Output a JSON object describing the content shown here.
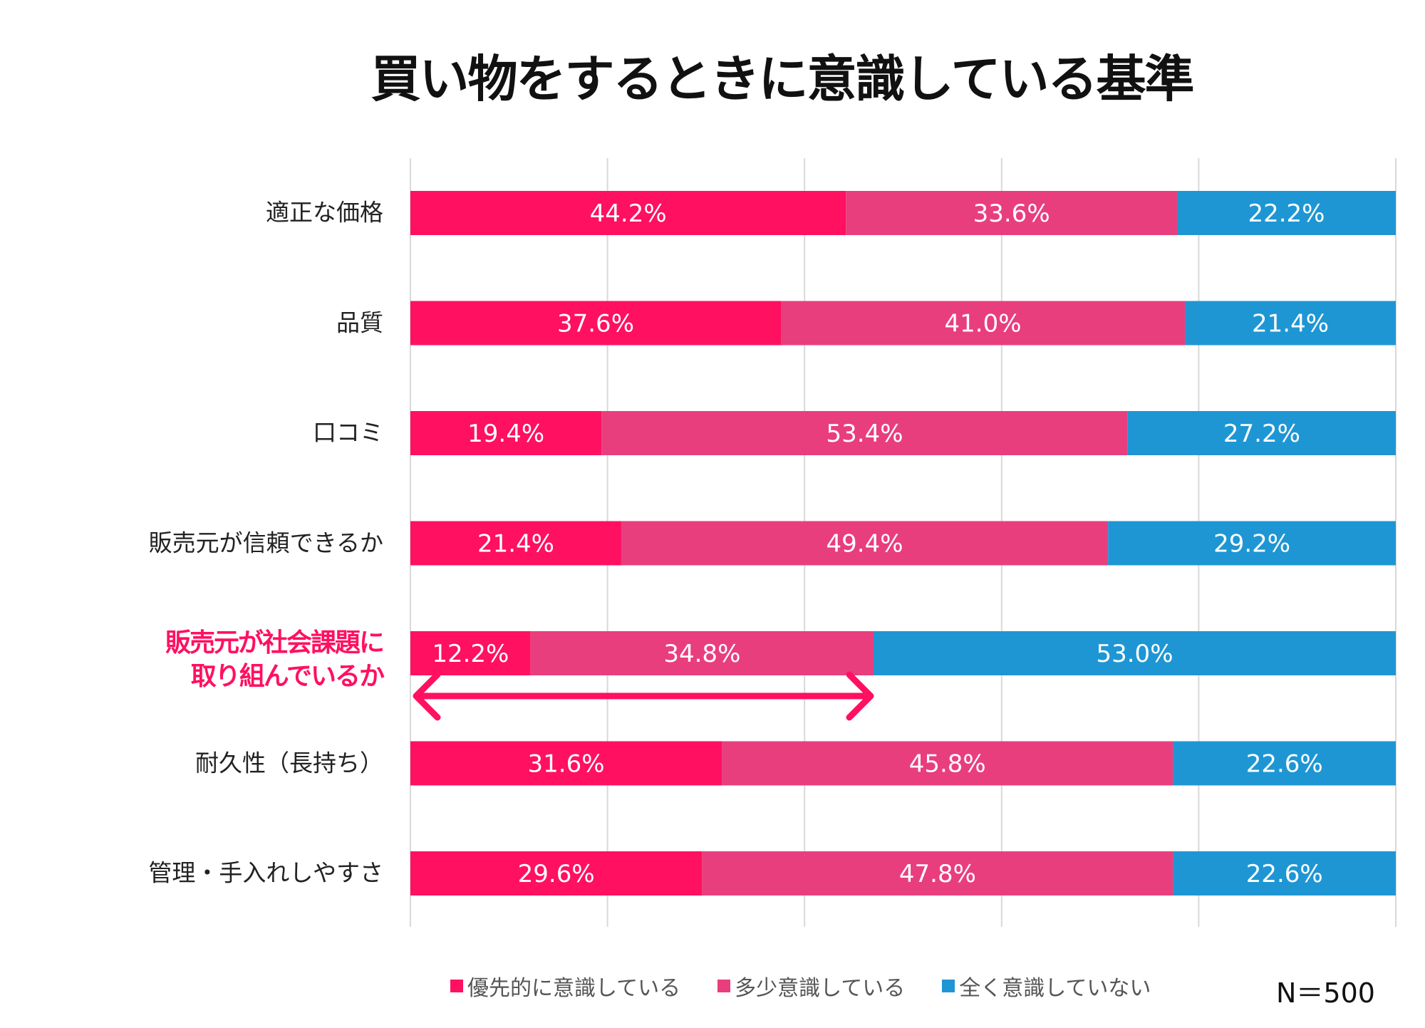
{
  "chart_data": {
    "type": "bar",
    "orientation": "horizontal",
    "stacked": "100%",
    "title": "買い物をするときに意識している基準",
    "categories": [
      "適正な価格",
      "品質",
      "口コミ",
      "販売元が信頼できるか",
      "販売元が社会課題に取り組んでいるか",
      "耐久性（長持ち）",
      "管理・手入れしやすさ"
    ],
    "category_lines": [
      [
        "適正な価格"
      ],
      [
        "品質"
      ],
      [
        "口コミ"
      ],
      [
        "販売元が信頼できるか"
      ],
      [
        "販売元が社会課題に",
        "取り組んでいるか"
      ],
      [
        "耐久性（長持ち）"
      ],
      [
        "管理・手入れしやすさ"
      ]
    ],
    "highlight_category": 4,
    "series": [
      {
        "name": "優先的に意識している",
        "color": "#FF1060",
        "values": [
          44.2,
          37.6,
          19.4,
          21.4,
          12.2,
          31.6,
          29.6
        ]
      },
      {
        "name": "多少意識している",
        "color": "#E83E7E",
        "values": [
          33.6,
          41.0,
          53.4,
          49.4,
          34.8,
          45.8,
          47.8
        ]
      },
      {
        "name": "全く意識していない",
        "color": "#1E96D4",
        "values": [
          22.2,
          21.4,
          27.2,
          29.2,
          53.0,
          22.6,
          22.6
        ]
      }
    ],
    "xlim": [
      0,
      100
    ],
    "grid": true,
    "legend": "bottom",
    "annotation": {
      "type": "double-arrow",
      "from": 0,
      "to": 47,
      "row": 4,
      "color": "#FF1060"
    },
    "note": "N＝500"
  }
}
